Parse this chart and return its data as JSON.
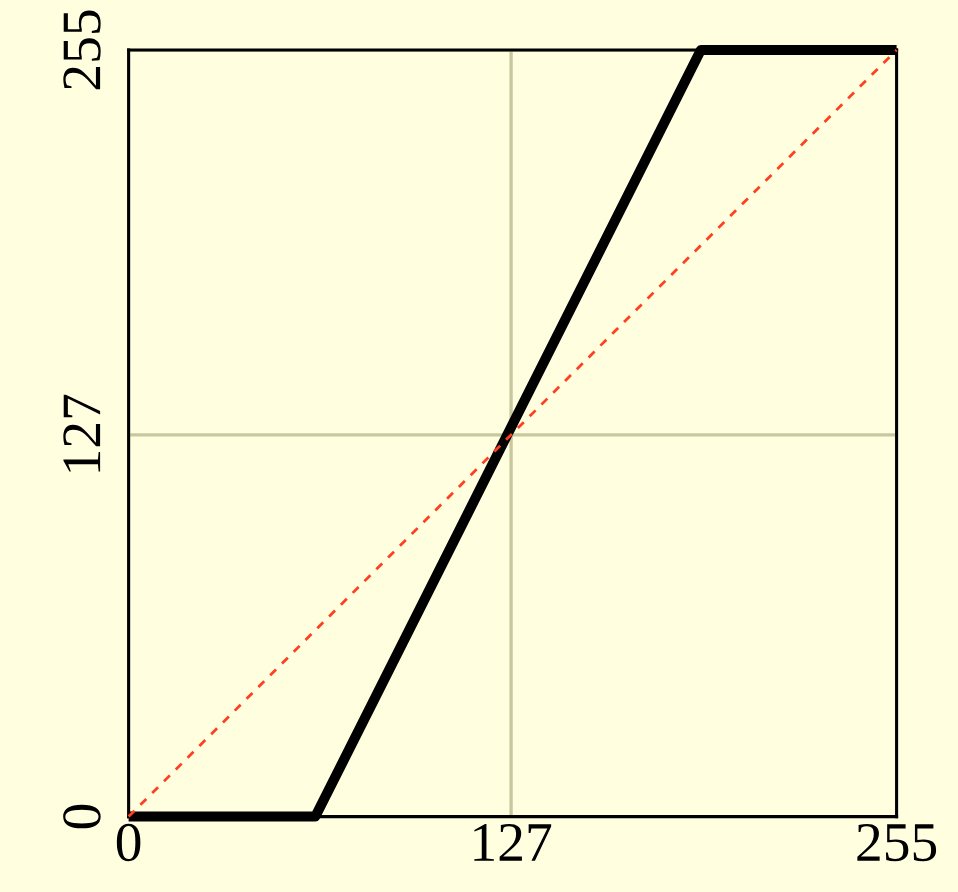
{
  "chart_data": {
    "type": "line",
    "xlim": [
      0,
      255
    ],
    "ylim": [
      0,
      255
    ],
    "xticks": [
      0,
      127,
      255
    ],
    "yticks": [
      0,
      127,
      255
    ],
    "grid": true,
    "series": [
      {
        "color": "#000000",
        "x": [
          0,
          62,
          190,
          255
        ],
        "values": [
          0,
          0,
          255,
          255
        ],
        "line_style": "solid"
      },
      {
        "type": "line",
        "color": "#ff4020",
        "x": [
          0,
          255
        ],
        "values": [
          0,
          255
        ],
        "line_style": "dashed"
      }
    ]
  }
}
